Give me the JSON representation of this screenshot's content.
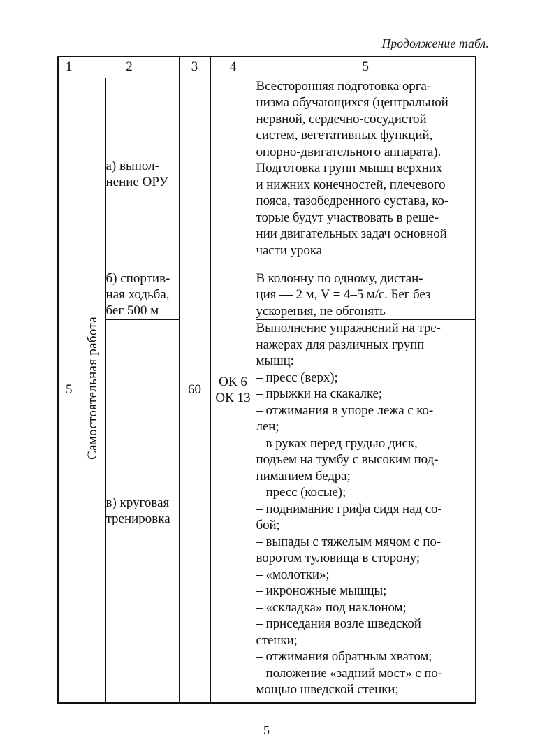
{
  "page": {
    "continuation_label": "Продолжение табл.",
    "page_number": "5"
  },
  "table": {
    "headers": [
      "1",
      "2",
      "3",
      "4",
      "5"
    ],
    "row_number": "5",
    "category_rotated": "Самостоятельная работа",
    "hours": "60",
    "competencies": [
      "ОК 6",
      "ОК 13"
    ],
    "activities": [
      {
        "lines": [
          "а) выпол-",
          "нение ОРУ"
        ]
      },
      {
        "lines": [
          "б) спортив-",
          "ная ходьба,",
          "бег 500 м"
        ]
      },
      {
        "lines": [
          "в) круговая",
          "тренировка"
        ]
      }
    ],
    "descriptions": [
      {
        "lines": [
          "Всесторонняя подготовка орга-",
          "низма обучающихся (центральной",
          "нервной, сердечно-сосудистой",
          "систем, вегетативных функций,",
          "опорно-двигательного аппарата).",
          "Подготовка групп мышц верхних",
          "и нижних конечностей, плечевого",
          "пояса, тазобедренного сустава, ко-",
          "торые будут участвовать в реше-",
          "нии двигательных задач основной",
          "части урока"
        ]
      },
      {
        "lines": [
          "В колонну по одному, дистан-",
          "ция — 2 м, V = 4–5 м/с. Бег без",
          "ускорения, не обгонять"
        ]
      },
      {
        "lines": [
          "Выполнение упражнений на тре-",
          "нажерах для различных групп",
          "мышц:",
          "– пресс (верх);",
          "– прыжки на скакалке;",
          "– отжимания в упоре лежа с ко-",
          "лен;",
          "– в руках перед грудью диск,",
          "подъем на тумбу с высоким под-",
          "ниманием бедра;",
          "– пресс (косые);",
          "– поднимание грифа сидя над со-",
          "бой;",
          "– выпады с тяжелым мячом с по-",
          "воротом туловища в сторону;",
          "– «молотки»;",
          "– икроножные мышцы;",
          "– «складка» под наклоном;",
          "– приседания возле шведской",
          "стенки;",
          "– отжимания обратным хватом;",
          "– положение «задний мост» с по-",
          "мощью шведской стенки;"
        ]
      }
    ]
  }
}
